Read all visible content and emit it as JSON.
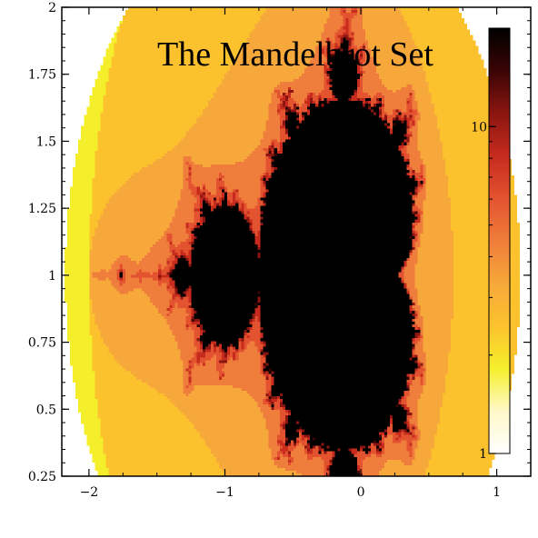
{
  "chart_data": {
    "type": "heatmap",
    "title": "The Mandelbrot Set",
    "xlabel": "",
    "ylabel": "",
    "xlim": [
      -2.2,
      1.25
    ],
    "ylim": [
      0.25,
      2.0
    ],
    "center": [
      -0.5,
      1.0
    ],
    "x_ticks": [
      {
        "value": -2,
        "label": "−2"
      },
      {
        "value": -1,
        "label": "−1"
      },
      {
        "value": 0,
        "label": "0"
      },
      {
        "value": 1,
        "label": "1"
      }
    ],
    "y_ticks": [
      {
        "value": 0.25,
        "label": "0.25"
      },
      {
        "value": 0.5,
        "label": "0.5"
      },
      {
        "value": 0.75,
        "label": "0.75"
      },
      {
        "value": 1,
        "label": "1"
      },
      {
        "value": 1.25,
        "label": "1.25"
      },
      {
        "value": 1.5,
        "label": "1.5"
      },
      {
        "value": 1.75,
        "label": "1.75"
      },
      {
        "value": 2,
        "label": "2"
      }
    ],
    "colorbar": {
      "scale": "log",
      "range": [
        1,
        20
      ],
      "tick_labels": [
        {
          "value": 1,
          "label": "1"
        },
        {
          "value": 10,
          "label": "10"
        }
      ],
      "colormap": [
        "#ffffff",
        "#fff8c8",
        "#f5ef2b",
        "#fcc22e",
        "#f7a83a",
        "#ef7d3b",
        "#e4532f",
        "#c62b1d",
        "#8b1510",
        "#3a0505",
        "#000000"
      ]
    },
    "grid": false,
    "legend": "none"
  }
}
